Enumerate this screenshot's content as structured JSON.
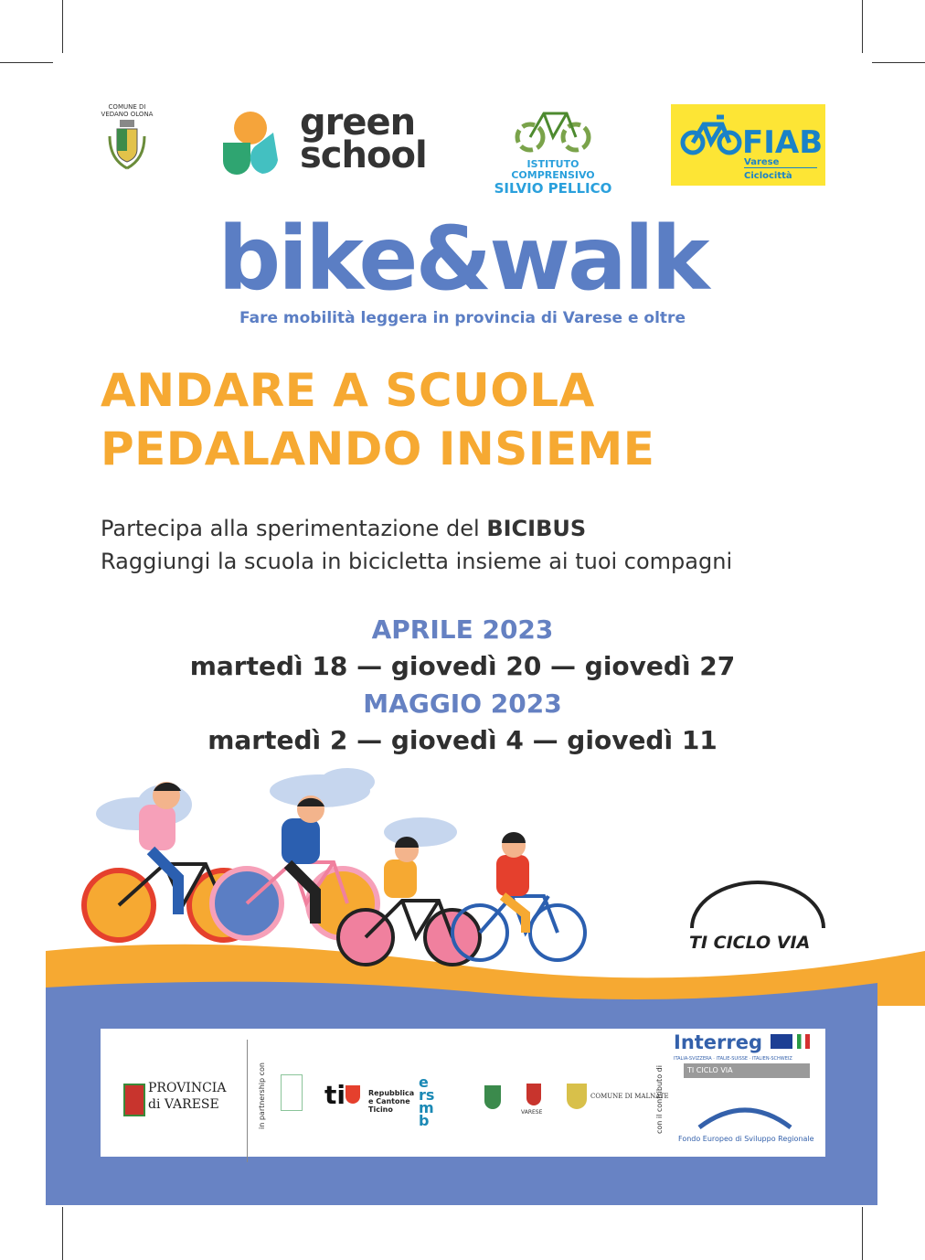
{
  "logos": {
    "comune_vedano": "COMUNE DI VEDANO OLONA",
    "green_school": [
      "green",
      "school"
    ],
    "istituto": [
      "ISTITUTO COMPRENSIVO",
      "SILVIO PELLICO"
    ],
    "fiab": {
      "name": "FIAB",
      "line1": "Varese",
      "line2": "Ciclocittà"
    }
  },
  "brand": {
    "title": "bike&walk",
    "subtitle": "Fare mobilità leggera in provincia di Varese e oltre"
  },
  "headline": [
    "ANDARE A SCUOLA",
    "PEDALANDO INSIEME"
  ],
  "intro": {
    "line1_prefix": "Partecipa alla sperimentazione del ",
    "line1_bold": "BICIBUS",
    "line2": "Raggiungi la scuola in bicicletta insieme ai tuoi compagni"
  },
  "schedule": [
    {
      "month": "APRILE 2023",
      "dates": "martedì 18 — giovedì 20 — giovedì 27"
    },
    {
      "month": "MAGGIO 2023",
      "dates": "martedì 2 — giovedì 4 — giovedì 11"
    }
  ],
  "ticiclovia": "TI CICLO VIA",
  "footer": {
    "provincia": [
      "PROVINCIA",
      "di VARESE"
    ],
    "partnership_label": "in partnership con",
    "ticino": "Repubblica e Cantone Ticino",
    "ersmb": "ersmb",
    "comune_malnate": "COMUNE DI MALNATE",
    "varese": "VARESE",
    "contributo_label": "con il contributo di",
    "interreg": "Interreg",
    "interreg_sub": "ITALIA-SVIZZERA · ITALIE-SUISSE · ITALIEN-SCHWEIZ",
    "interreg_project": "TI CICLO VIA",
    "fondo": "Fondo Europeo di Sviluppo Regionale"
  },
  "colors": {
    "orange": "#f6a932",
    "blue": "#6581c2",
    "band_blue": "#6883c4",
    "text": "#333333",
    "fiab_yellow": "#fde535"
  }
}
